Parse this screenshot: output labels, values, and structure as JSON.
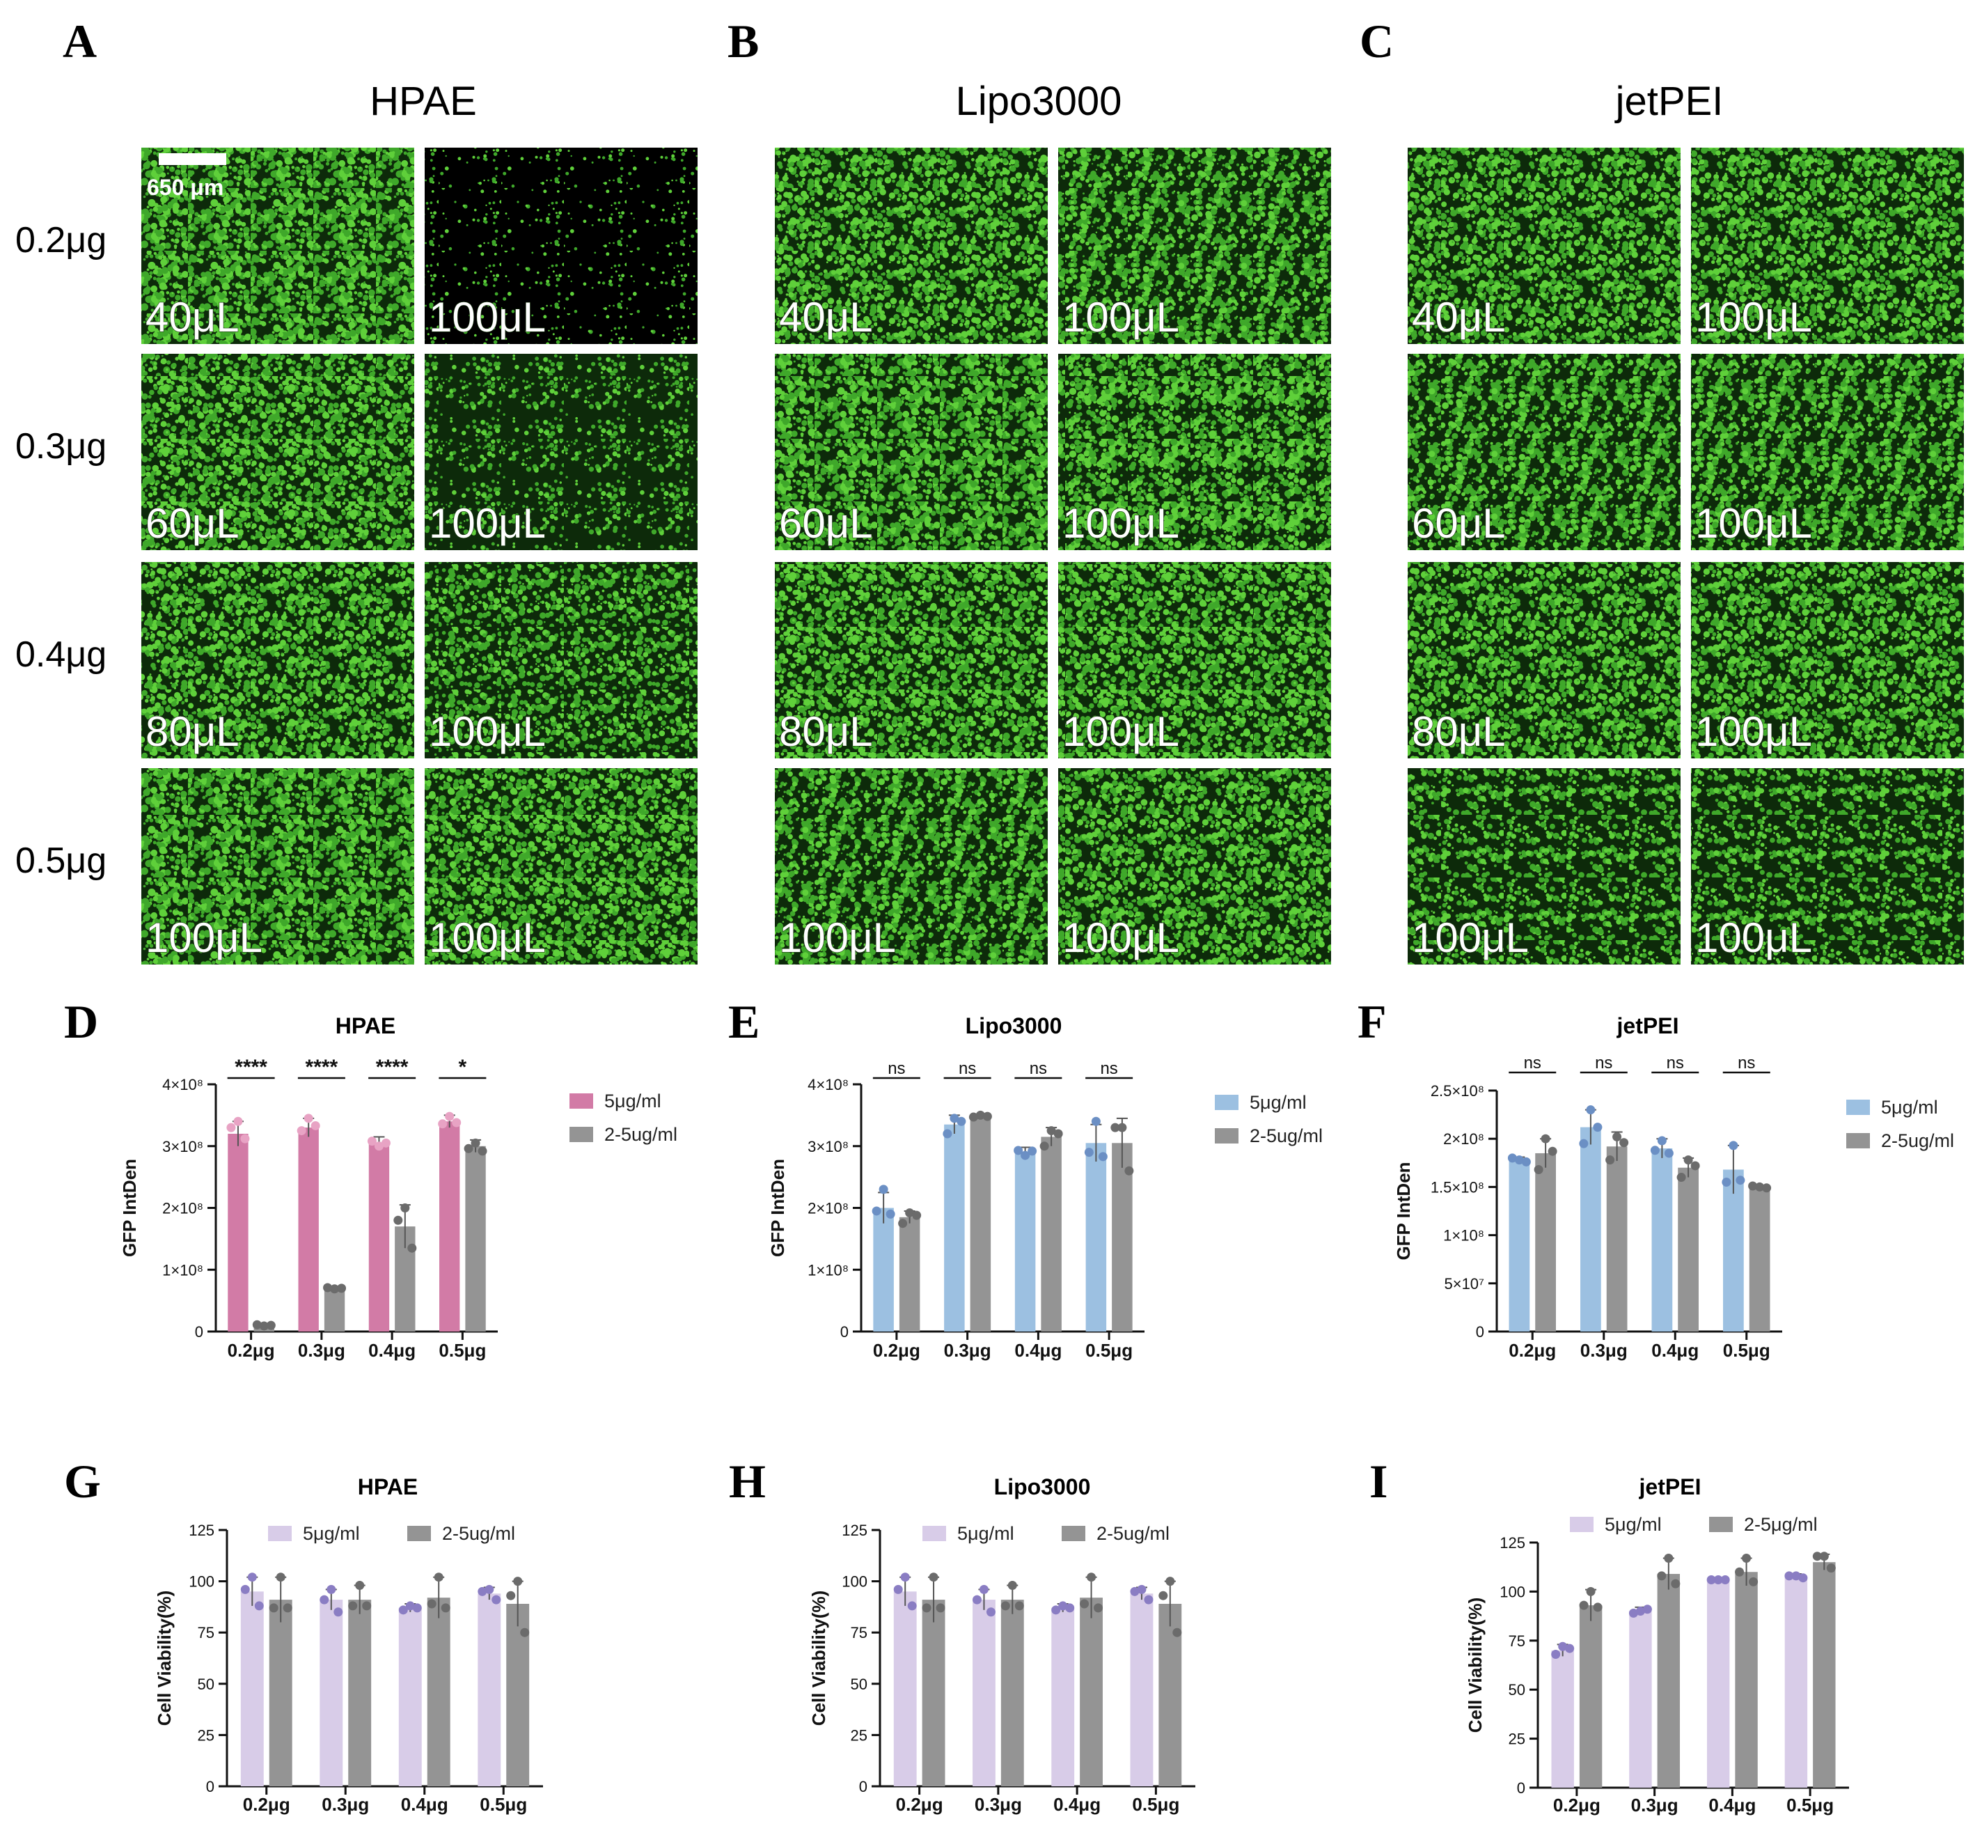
{
  "colors": {
    "pink": "#d27ba6",
    "pink_point": "#e8a3c4",
    "blue": "#9cc0e1",
    "blue_point": "#6b8fc4",
    "lavender": "#d8cce8",
    "lavender_point": "#8a7dc3",
    "gray": "#949494",
    "gray_point": "#6b6b6b",
    "micro_bright": "#5fd03a",
    "micro_dark": "#0d2a0a",
    "micro_black": "#000000"
  },
  "micrographs": {
    "scale_bar_label": "650 μm",
    "row_labels": [
      "0.2μg",
      "0.3μg",
      "0.4μg",
      "0.5μg"
    ],
    "groups": [
      {
        "letter": "A",
        "title": "HPAE",
        "wells": [
          [
            "40μL",
            "100μL"
          ],
          [
            "60μL",
            "100μL"
          ],
          [
            "80μL",
            "100μL"
          ],
          [
            "100μL",
            "100μL"
          ]
        ],
        "intensity": [
          [
            0.9,
            0.12
          ],
          [
            0.85,
            0.35
          ],
          [
            0.8,
            0.7
          ],
          [
            0.9,
            0.85
          ]
        ]
      },
      {
        "letter": "B",
        "title": "Lipo3000",
        "wells": [
          [
            "40μL",
            "100μL"
          ],
          [
            "60μL",
            "100μL"
          ],
          [
            "80μL",
            "100μL"
          ],
          [
            "100μL",
            "100μL"
          ]
        ],
        "intensity": [
          [
            0.8,
            0.75
          ],
          [
            0.9,
            0.88
          ],
          [
            0.85,
            0.85
          ],
          [
            0.75,
            0.8
          ]
        ]
      },
      {
        "letter": "C",
        "title": "jetPEI",
        "wells": [
          [
            "40μL",
            "100μL"
          ],
          [
            "60μL",
            "100μL"
          ],
          [
            "80μL",
            "100μL"
          ],
          [
            "100μL",
            "100μL"
          ]
        ],
        "intensity": [
          [
            0.8,
            0.8
          ],
          [
            0.75,
            0.75
          ],
          [
            0.78,
            0.78
          ],
          [
            0.6,
            0.6
          ]
        ]
      }
    ]
  },
  "chart_data": [
    {
      "panel": "D",
      "type": "bar",
      "title": "HPAE",
      "ylabel": "GFP IntDen",
      "ylim": [
        0,
        400000000
      ],
      "yticks": [
        0,
        100000000,
        200000000,
        300000000,
        400000000
      ],
      "ytick_labels": [
        "0",
        "1×10⁸",
        "2×10⁸",
        "3×10⁸",
        "4×10⁸"
      ],
      "categories": [
        "0.2μg",
        "0.3μg",
        "0.4μg",
        "0.5μg"
      ],
      "series": [
        {
          "name": "5μg/ml",
          "color": "pink",
          "point_color": "pink_point",
          "values": [
            320000000,
            330000000,
            305000000,
            340000000
          ],
          "errors": [
            20000000,
            15000000,
            10000000,
            10000000
          ],
          "points": [
            [
              340000000,
              330000000,
              312000000
            ],
            [
              345000000,
              325000000,
              333000000
            ],
            [
              300000000,
              308000000,
              305000000
            ],
            [
              348000000,
              336000000,
              338000000
            ]
          ]
        },
        {
          "name": "2-5ug/ml",
          "color": "gray",
          "point_color": "gray_point",
          "values": [
            10000000,
            70000000,
            170000000,
            300000000
          ],
          "errors": [
            2000000,
            2000000,
            35000000,
            10000000
          ],
          "points": [
            [
              9000000,
              11000000,
              10000000
            ],
            [
              69000000,
              71000000,
              70000000
            ],
            [
              200000000,
              180000000,
              135000000
            ],
            [
              305000000,
              296000000,
              292000000
            ]
          ]
        }
      ],
      "significance": [
        "****",
        "****",
        "****",
        "*"
      ],
      "legend": "top-right"
    },
    {
      "panel": "E",
      "type": "bar",
      "title": "Lipo3000",
      "ylabel": "GFP IntDen",
      "ylim": [
        0,
        400000000
      ],
      "yticks": [
        0,
        100000000,
        200000000,
        300000000,
        400000000
      ],
      "ytick_labels": [
        "0",
        "1×10⁸",
        "2×10⁸",
        "3×10⁸",
        "4×10⁸"
      ],
      "categories": [
        "0.2μg",
        "0.3μg",
        "0.4μg",
        "0.5μg"
      ],
      "series": [
        {
          "name": "5μg/ml",
          "color": "blue",
          "point_color": "blue_point",
          "values": [
            200000000,
            335000000,
            290000000,
            305000000
          ],
          "errors": [
            25000000,
            15000000,
            8000000,
            30000000
          ],
          "points": [
            [
              230000000,
              195000000,
              190000000
            ],
            [
              345000000,
              320000000,
              340000000
            ],
            [
              285000000,
              293000000,
              292000000
            ],
            [
              340000000,
              290000000,
              283000000
            ]
          ]
        },
        {
          "name": "2-5ug/ml",
          "color": "gray",
          "point_color": "gray_point",
          "values": [
            185000000,
            348000000,
            315000000,
            305000000
          ],
          "errors": [
            10000000,
            3000000,
            15000000,
            40000000
          ],
          "points": [
            [
              192000000,
              175000000,
              188000000
            ],
            [
              350000000,
              347000000,
              348000000
            ],
            [
              325000000,
              300000000,
              320000000
            ],
            [
              330000000,
              330000000,
              260000000
            ]
          ]
        }
      ],
      "significance": [
        "ns",
        "ns",
        "ns",
        "ns"
      ],
      "legend": "top-right"
    },
    {
      "panel": "F",
      "type": "bar",
      "title": "jetPEI",
      "ylabel": "GFP IntDen",
      "ylim": [
        0,
        250000000
      ],
      "yticks": [
        0,
        50000000,
        100000000,
        150000000,
        200000000,
        250000000
      ],
      "ytick_labels": [
        "0",
        "5×10⁷",
        "1×10⁸",
        "1.5×10⁸",
        "2×10⁸",
        "2.5×10⁸"
      ],
      "categories": [
        "0.2μg",
        "0.3μg",
        "0.4μg",
        "0.5μg"
      ],
      "series": [
        {
          "name": "5μg/ml",
          "color": "blue",
          "point_color": "blue_point",
          "values": [
            178000000,
            212000000,
            190000000,
            168000000
          ],
          "errors": [
            3000000,
            18000000,
            10000000,
            25000000
          ],
          "points": [
            [
              178000000,
              180000000,
              176000000
            ],
            [
              230000000,
              195000000,
              212000000
            ],
            [
              198000000,
              188000000,
              185000000
            ],
            [
              193000000,
              155000000,
              157000000
            ]
          ]
        },
        {
          "name": "2-5ug/ml",
          "color": "gray",
          "point_color": "gray_point",
          "values": [
            185000000,
            192000000,
            170000000,
            150000000
          ],
          "errors": [
            15000000,
            15000000,
            10000000,
            1000000
          ],
          "points": [
            [
              200000000,
              168000000,
              187000000
            ],
            [
              202000000,
              178000000,
              196000000
            ],
            [
              178000000,
              160000000,
              172000000
            ],
            [
              150000000,
              151000000,
              149000000
            ]
          ]
        }
      ],
      "significance": [
        "ns",
        "ns",
        "ns",
        "ns"
      ],
      "legend": "top-right"
    },
    {
      "panel": "G",
      "type": "bar",
      "title": "HPAE",
      "ylabel": "Cell Viability(%)",
      "ylim": [
        0,
        125
      ],
      "yticks": [
        0,
        25,
        50,
        75,
        100,
        125
      ],
      "ytick_labels": [
        "0",
        "25",
        "50",
        "75",
        "100",
        "125"
      ],
      "categories": [
        "0.2μg",
        "0.3μg",
        "0.4μg",
        "0.5μg"
      ],
      "series": [
        {
          "name": "5μg/ml",
          "color": "lavender",
          "point_color": "lavender_point",
          "values": [
            95,
            91,
            87,
            94
          ],
          "errors": [
            7,
            5,
            2,
            3
          ],
          "points": [
            [
              102,
              96,
              88
            ],
            [
              96,
              91,
              85
            ],
            [
              88,
              86,
              87
            ],
            [
              96,
              95,
              91
            ]
          ]
        },
        {
          "name": "2-5ug/ml",
          "color": "gray",
          "point_color": "gray_point",
          "values": [
            91,
            91,
            92,
            89
          ],
          "errors": [
            11,
            7,
            10,
            11
          ],
          "points": [
            [
              102,
              87,
              87
            ],
            [
              98,
              88,
              88
            ],
            [
              102,
              89,
              87
            ],
            [
              100,
              93,
              75
            ]
          ]
        }
      ],
      "legend": "top"
    },
    {
      "panel": "H",
      "type": "bar",
      "title": "Lipo3000",
      "ylabel": "Cell Viability(%)",
      "ylim": [
        0,
        125
      ],
      "yticks": [
        0,
        25,
        50,
        75,
        100,
        125
      ],
      "ytick_labels": [
        "0",
        "25",
        "50",
        "75",
        "100",
        "125"
      ],
      "categories": [
        "0.2μg",
        "0.3μg",
        "0.4μg",
        "0.5μg"
      ],
      "series": [
        {
          "name": "5μg/ml",
          "color": "lavender",
          "point_color": "lavender_point",
          "values": [
            95,
            91,
            87,
            94
          ],
          "errors": [
            7,
            5,
            2,
            3
          ],
          "points": [
            [
              102,
              96,
              88
            ],
            [
              96,
              91,
              85
            ],
            [
              88,
              86,
              87
            ],
            [
              96,
              95,
              91
            ]
          ]
        },
        {
          "name": "2-5ug/ml",
          "color": "gray",
          "point_color": "gray_point",
          "values": [
            91,
            91,
            92,
            89
          ],
          "errors": [
            11,
            7,
            10,
            11
          ],
          "points": [
            [
              102,
              87,
              87
            ],
            [
              98,
              88,
              88
            ],
            [
              102,
              89,
              87
            ],
            [
              100,
              93,
              75
            ]
          ]
        }
      ],
      "legend": "top"
    },
    {
      "panel": "I",
      "type": "bar",
      "title": "jetPEI",
      "ylabel": "Cell Viability(%)",
      "ylim": [
        0,
        125
      ],
      "yticks": [
        0,
        25,
        50,
        75,
        100,
        125
      ],
      "ytick_labels": [
        "0",
        "25",
        "50",
        "75",
        "100",
        "125"
      ],
      "categories": [
        "0.2μg",
        "0.3μg",
        "0.4μg",
        "0.5μg"
      ],
      "series": [
        {
          "name": "5μg/ml",
          "color": "lavender",
          "point_color": "lavender_point",
          "values": [
            70,
            90,
            106,
            108
          ],
          "errors": [
            3,
            2,
            1,
            1
          ],
          "points": [
            [
              72,
              68,
              71
            ],
            [
              90,
              89,
              91
            ],
            [
              106,
              106,
              106
            ],
            [
              108,
              108,
              107
            ]
          ]
        },
        {
          "name": "2-5μg/ml",
          "color": "gray",
          "point_color": "gray_point",
          "values": [
            93,
            109,
            110,
            115
          ],
          "errors": [
            8,
            8,
            7,
            4
          ],
          "points": [
            [
              100,
              93,
              92
            ],
            [
              117,
              108,
              104
            ],
            [
              117,
              110,
              105
            ],
            [
              118,
              118,
              112
            ]
          ]
        }
      ],
      "legend": "top"
    }
  ]
}
